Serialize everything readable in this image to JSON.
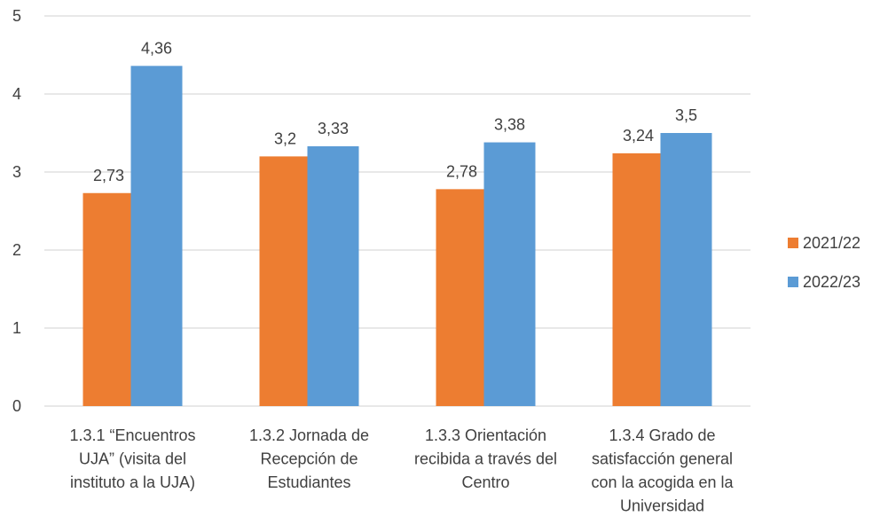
{
  "chart_data": {
    "type": "bar",
    "title": "",
    "xlabel": "",
    "ylabel": "",
    "ylim": [
      0,
      5
    ],
    "yticks": [
      0,
      1,
      2,
      3,
      4,
      5
    ],
    "grid": true,
    "legend_position": "right",
    "categories": [
      [
        "1.3.1 “Encuentros",
        "UJA” (visita del",
        "instituto a la UJA)"
      ],
      [
        "1.3.2 Jornada de",
        "Recepción de",
        "Estudiantes"
      ],
      [
        "1.3.3 Orientación",
        "recibida a través del",
        "Centro"
      ],
      [
        "1.3.4 Grado de",
        "satisfacción general",
        "con la acogida en la",
        "Universidad"
      ]
    ],
    "series": [
      {
        "name": "2021/22",
        "color": "#ED7D31",
        "values": [
          2.73,
          3.2,
          2.78,
          3.24
        ],
        "labels": [
          "2,73",
          "3,2",
          "2,78",
          "3,24"
        ]
      },
      {
        "name": "2022/23",
        "color": "#5B9BD5",
        "values": [
          4.36,
          3.33,
          3.38,
          3.5
        ],
        "labels": [
          "4,36",
          "3,33",
          "3,38",
          "3,5"
        ]
      }
    ]
  }
}
